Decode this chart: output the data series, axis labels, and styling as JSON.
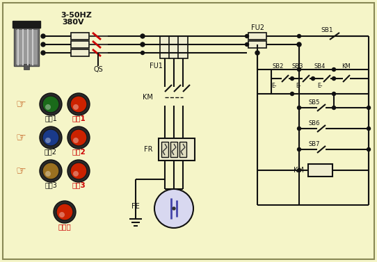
{
  "bg_color": "#F5F5C8",
  "line_color": "#111111",
  "red_color": "#CC0000",
  "text_color": "#111111",
  "label_freq": "3-50HZ",
  "label_volt": "380V",
  "label_QS": "QS",
  "label_FU1": "FU1",
  "label_FU2": "FU2",
  "label_KM_main": "KM",
  "label_FR": "FR",
  "label_FE": "FE",
  "label_SB1": "SB1",
  "label_SB2": "SB2",
  "label_SB3": "SB3",
  "label_SB4": "SB4",
  "label_SB5": "SB5",
  "label_SB6": "SB6",
  "label_SB7": "SB7",
  "label_KM_coil": "KM",
  "btn_start_colors": [
    "#1a6a1a",
    "#1a3a8a",
    "#9B7020"
  ],
  "btn_stop_color": "#CC2200",
  "btn_total_stop_color": "#CC2200",
  "start_labels": [
    "启刨1",
    "启刨2",
    "启刨3"
  ],
  "stop_labels": [
    "停止1",
    "停止2",
    "停止3"
  ],
  "total_stop_label": "总停止"
}
